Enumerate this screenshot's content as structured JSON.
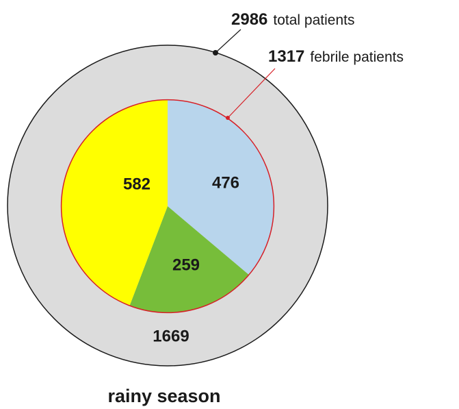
{
  "chart_data": {
    "type": "pie",
    "title": "rainy season",
    "total": {
      "value": 2986,
      "label": "total patients"
    },
    "subtotal": {
      "value": 1317,
      "label": "febrile patients"
    },
    "remainder": 1669,
    "values": [
      476,
      259,
      582
    ],
    "colors": [
      "#b8d5ec",
      "#77bd3a",
      "#ffff00"
    ],
    "ring_color": "#dcdcdc",
    "subtotal_outline": "#d62027"
  }
}
